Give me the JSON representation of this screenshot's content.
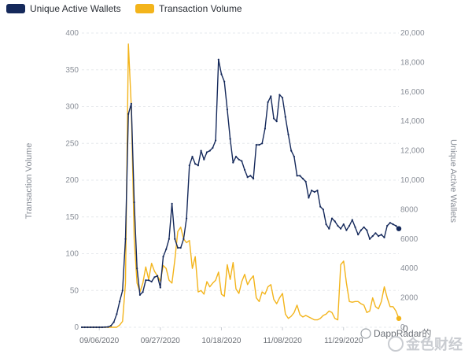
{
  "chart_data": {
    "type": "line",
    "legend": {
      "placement": "top-left"
    },
    "series": [
      {
        "name": "Unique Active Wallets",
        "axis": "right",
        "color": "#15295b"
      },
      {
        "name": "Transaction Volume",
        "axis": "left",
        "color": "#f3b41b"
      }
    ],
    "left_axis": {
      "label": "Transaction Volume",
      "range": [
        0,
        400
      ],
      "ticks": [
        0,
        50,
        100,
        150,
        200,
        250,
        300,
        350,
        400
      ]
    },
    "right_axis": {
      "label": "Unique Active Wallets",
      "range": [
        0,
        20000
      ],
      "ticks": [
        "0",
        "2000",
        "4000",
        "6000",
        "8000",
        "10,000",
        "12,000",
        "14,000",
        "16,000",
        "18,000",
        "20,000"
      ]
    },
    "x_axis": {
      "tick_labels": [
        "09/06/2020",
        "09/27/2020",
        "10/18/2020",
        "11/08/2020",
        "11/29/2020"
      ],
      "tick_days": [
        6,
        27,
        48,
        69,
        90
      ]
    },
    "wallets": {
      "x": [
        0,
        1,
        2,
        3,
        4,
        5,
        6,
        7,
        8,
        9,
        10,
        11,
        12,
        13,
        14,
        15,
        16,
        17,
        18,
        19,
        20,
        21,
        22,
        23,
        24,
        25,
        26,
        27,
        28,
        29,
        30,
        31,
        32,
        33,
        34,
        35,
        36,
        37,
        38,
        39,
        40,
        41,
        42,
        43,
        44,
        45,
        46,
        47,
        48,
        49,
        50,
        51,
        52,
        53,
        54,
        55,
        56,
        57,
        58,
        59,
        60,
        61,
        62,
        63,
        64,
        65,
        66,
        67,
        68,
        69,
        70,
        71,
        72,
        73,
        74,
        75,
        76,
        77,
        78,
        79,
        80,
        81,
        82,
        83,
        84,
        85,
        86,
        87,
        88,
        89,
        90,
        91,
        92,
        93,
        94,
        95,
        96,
        97,
        98,
        99,
        100,
        101,
        102,
        103,
        104,
        105,
        106,
        107,
        108,
        109
      ],
      "values": [
        0,
        0,
        0,
        0,
        0,
        0,
        0,
        0,
        10,
        20,
        100,
        350,
        900,
        1750,
        2500,
        6000,
        14500,
        15200,
        8500,
        4000,
        2200,
        2400,
        3200,
        3200,
        3100,
        3400,
        3500,
        2700,
        4800,
        5300,
        6000,
        8400,
        6000,
        5400,
        5400,
        6000,
        7400,
        11000,
        11600,
        11100,
        11000,
        12000,
        11400,
        11900,
        12000,
        12200,
        12700,
        18200,
        17200,
        16700,
        14800,
        12800,
        11200,
        11600,
        11400,
        11300,
        10700,
        10200,
        10300,
        10100,
        12400,
        12400,
        12500,
        13500,
        15300,
        15700,
        14200,
        14000,
        15800,
        15600,
        14300,
        13100,
        12000,
        11600,
        10300,
        10300,
        10100,
        9900,
        8800,
        9300,
        9200,
        9300,
        8200,
        8000,
        7000,
        6700,
        7400,
        7200,
        6900,
        6700,
        7000,
        6600,
        6900,
        7300,
        6800,
        6300,
        6600,
        6800,
        6600,
        6000,
        6200,
        6400,
        6200,
        6300,
        6100,
        6900,
        7100,
        7000,
        6900,
        6700
      ]
    },
    "volume": {
      "x": [
        0,
        1,
        2,
        3,
        4,
        5,
        6,
        7,
        8,
        9,
        10,
        11,
        12,
        13,
        14,
        15,
        16,
        17,
        18,
        19,
        20,
        21,
        22,
        23,
        24,
        25,
        26,
        27,
        28,
        29,
        30,
        31,
        32,
        33,
        34,
        35,
        36,
        37,
        38,
        39,
        40,
        41,
        42,
        43,
        44,
        45,
        46,
        47,
        48,
        49,
        50,
        51,
        52,
        53,
        54,
        55,
        56,
        57,
        58,
        59,
        60,
        61,
        62,
        63,
        64,
        65,
        66,
        67,
        68,
        69,
        70,
        71,
        72,
        73,
        74,
        75,
        76,
        77,
        78,
        79,
        80,
        81,
        82,
        83,
        84,
        85,
        86,
        87,
        88,
        89,
        90,
        91,
        92,
        93,
        94,
        95,
        96,
        97,
        98,
        99,
        100,
        101,
        102,
        103,
        104,
        105,
        106,
        107,
        108,
        109
      ],
      "values": [
        0,
        0,
        0,
        0,
        0,
        0,
        0,
        0,
        0,
        0,
        0,
        0,
        0,
        3,
        8,
        60,
        385,
        300,
        120,
        60,
        48,
        60,
        82,
        65,
        87,
        76,
        70,
        63,
        84,
        80,
        64,
        60,
        92,
        130,
        136,
        120,
        115,
        118,
        80,
        96,
        48,
        50,
        45,
        62,
        55,
        60,
        64,
        75,
        45,
        42,
        85,
        65,
        88,
        52,
        46,
        62,
        72,
        58,
        65,
        70,
        40,
        35,
        48,
        45,
        55,
        58,
        38,
        32,
        40,
        46,
        18,
        12,
        15,
        20,
        30,
        17,
        14,
        16,
        14,
        12,
        10,
        10,
        12,
        16,
        18,
        22,
        20,
        12,
        10,
        85,
        90,
        60,
        35,
        34,
        35,
        35,
        32,
        30,
        20,
        22,
        40,
        28,
        25,
        35,
        55,
        40,
        28,
        28,
        22,
        12
      ]
    }
  },
  "watermark": {
    "text": "DappRadar的",
    "brand": "金色财经",
    "extra": "0"
  }
}
